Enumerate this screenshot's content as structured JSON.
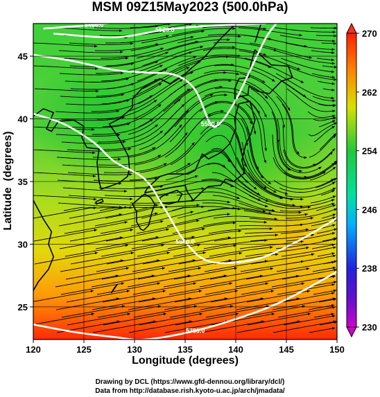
{
  "title": "MSM 09Z15May2023 (500.0hPa)",
  "chart_data": {
    "type": "heatmap",
    "xlabel": "Longitude (degrees)",
    "ylabel": "Latitude  (degrees)",
    "xlim": [
      120,
      150
    ],
    "ylim": [
      22.4,
      47.6
    ],
    "xticks": [
      "120",
      "125",
      "130",
      "135",
      "140",
      "145",
      "150"
    ],
    "yticks": [
      "25",
      "30",
      "35",
      "40",
      "45"
    ],
    "colorbar": {
      "min": 230,
      "max": 270,
      "ticks": [
        "230",
        "238",
        "246",
        "254",
        "262",
        "270"
      ],
      "colors": [
        "#cc00cc",
        "#2222dd",
        "#00b0ff",
        "#00e0a0",
        "#22c83a",
        "#d8e000",
        "#ff8000",
        "#ff2000"
      ]
    },
    "contours": [
      {
        "label": "5460.0",
        "points": [
          [
            121,
            47.2
          ],
          [
            126,
            47.5
          ],
          [
            129,
            47.8
          ]
        ]
      },
      {
        "label": "5520.0",
        "points": [
          [
            122,
            46.8
          ],
          [
            128,
            46.5
          ],
          [
            133,
            47.1
          ],
          [
            137,
            47.4
          ],
          [
            143,
            47.6
          ]
        ]
      },
      {
        "label": "5580.0",
        "points": [
          [
            120,
            45.1
          ],
          [
            124,
            44.6
          ],
          [
            128,
            43.9
          ],
          [
            131,
            43.7
          ],
          [
            134,
            43.5
          ],
          [
            136,
            42.3
          ],
          [
            137.5,
            39.6
          ],
          [
            138.5,
            39.7
          ],
          [
            140,
            41.5
          ],
          [
            141.5,
            44.0
          ],
          [
            143,
            46.5
          ],
          [
            144,
            47.6
          ]
        ]
      },
      {
        "label": "5640.0",
        "points": [
          [
            120,
            40.4
          ],
          [
            123,
            39.6
          ],
          [
            126,
            38.1
          ],
          [
            128,
            36.6
          ],
          [
            131,
            35.2
          ],
          [
            133,
            32.8
          ],
          [
            135,
            30.2
          ],
          [
            137.5,
            28.6
          ],
          [
            142,
            28.8
          ],
          [
            146,
            30.2
          ],
          [
            149,
            31.6
          ],
          [
            150,
            32.1
          ]
        ]
      },
      {
        "label": "5700.0",
        "points": [
          [
            120,
            23.6
          ],
          [
            124,
            23.0
          ],
          [
            128,
            22.6
          ],
          [
            131,
            22.4
          ],
          [
            136,
            23.1
          ],
          [
            141,
            24.3
          ],
          [
            145,
            25.6
          ],
          [
            150,
            27.8
          ]
        ]
      }
    ],
    "regions": {
      "north_center": 256,
      "south": 268,
      "east_mid": 259
    },
    "grid": true
  }
}
